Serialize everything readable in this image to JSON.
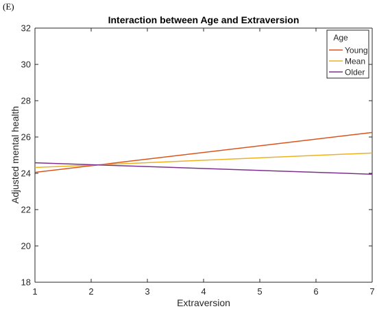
{
  "panel_label": "(E)",
  "chart_data": {
    "type": "line",
    "title": "Interaction between Age and Extraversion",
    "xlabel": "Extraversion",
    "ylabel": "Adjusted mental health",
    "xlim": [
      1,
      7
    ],
    "ylim": [
      18,
      32
    ],
    "x_ticks": [
      1,
      2,
      3,
      4,
      5,
      6,
      7
    ],
    "y_ticks": [
      18,
      20,
      22,
      24,
      26,
      28,
      30,
      32
    ],
    "grid": false,
    "legend": {
      "title": "Age",
      "position": "top-right"
    },
    "series": [
      {
        "name": "Young",
        "color": "#d95319",
        "x": [
          1,
          7
        ],
        "y": [
          24.05,
          26.25
        ]
      },
      {
        "name": "Mean",
        "color": "#edb120",
        "x": [
          1,
          7
        ],
        "y": [
          24.32,
          25.12
        ]
      },
      {
        "name": "Older",
        "color": "#7e2f8e",
        "x": [
          1,
          7
        ],
        "y": [
          24.58,
          23.95
        ]
      }
    ]
  }
}
